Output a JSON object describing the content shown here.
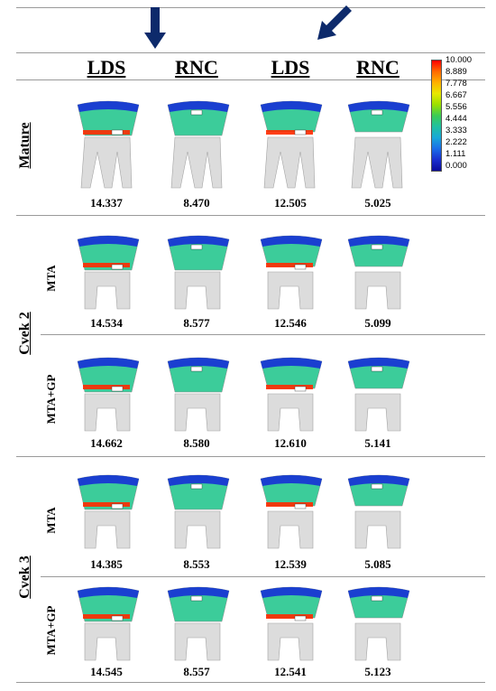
{
  "columns": [
    "LDS",
    "RNC",
    "LDS",
    "RNC"
  ],
  "legend": [
    "10.000",
    "8.889",
    "7.778",
    "6.667",
    "5.556",
    "4.444",
    "3.333",
    "2.222",
    "1.111",
    "0.000"
  ],
  "groups": [
    {
      "label": "Mature",
      "rows": [
        {
          "sublabel": "",
          "values": [
            "14.337",
            "8.470",
            "12.505",
            "5.025"
          ]
        }
      ]
    },
    {
      "label": "Cvek 2",
      "rows": [
        {
          "sublabel": "MTA",
          "values": [
            "14.534",
            "8.577",
            "12.546",
            "5.099"
          ]
        },
        {
          "sublabel": "MTA+GP",
          "values": [
            "14.662",
            "8.580",
            "12.610",
            "5.141"
          ]
        }
      ]
    },
    {
      "label": "Cvek 3",
      "rows": [
        {
          "sublabel": "MTA",
          "values": [
            "14.385",
            "8.553",
            "12.539",
            "5.085"
          ]
        },
        {
          "sublabel": "MTA+GP",
          "values": [
            "14.545",
            "8.557",
            "12.541",
            "5.123"
          ]
        }
      ]
    }
  ],
  "colors": {
    "arrow": "#0d2a6b",
    "enamel_top": "#1a3fd0",
    "hot": "#ff2a00",
    "mid": "#3ccc9a",
    "root": "#d9d9d9"
  }
}
